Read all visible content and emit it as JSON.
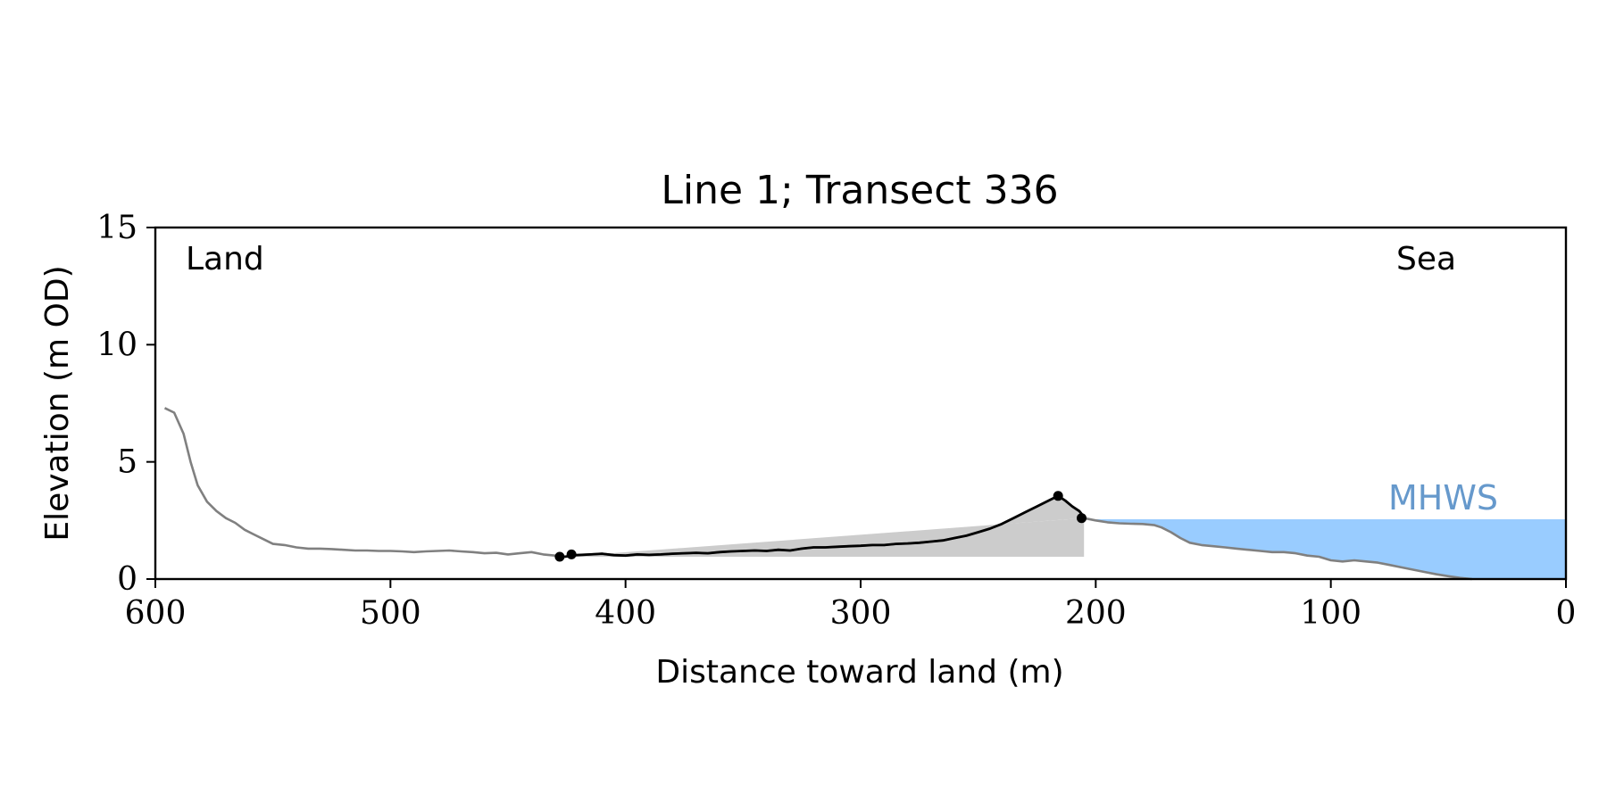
{
  "chart_data": {
    "type": "line",
    "title": "Line 1; Transect 336",
    "xlabel": "Distance toward land (m)",
    "ylabel": "Elevation (m OD)",
    "xlim": [
      600,
      0
    ],
    "ylim": [
      0,
      15
    ],
    "x_ticks": [
      600,
      500,
      400,
      300,
      200,
      100,
      0
    ],
    "y_ticks": [
      0,
      5,
      10,
      15
    ],
    "grid": false,
    "annotations": {
      "land": "Land",
      "sea": "Sea",
      "mhws": "MHWS"
    },
    "mhws_level": 2.55,
    "colors": {
      "profile": "#808080",
      "dune": "#000000",
      "water": "#99ccff",
      "mhws_text": "#6699cc",
      "fill": "#cccccc"
    },
    "profile": {
      "x": [
        596,
        592,
        588,
        585,
        582,
        578,
        574,
        570,
        566,
        562,
        558,
        554,
        550,
        545,
        540,
        535,
        530,
        525,
        520,
        515,
        510,
        505,
        500,
        495,
        490,
        485,
        480,
        475,
        470,
        465,
        460,
        455,
        450,
        445,
        440,
        435,
        430,
        426
      ],
      "y": [
        7.3,
        7.1,
        6.2,
        5.0,
        4.0,
        3.3,
        2.9,
        2.6,
        2.4,
        2.1,
        1.9,
        1.7,
        1.5,
        1.45,
        1.35,
        1.3,
        1.3,
        1.28,
        1.25,
        1.22,
        1.22,
        1.2,
        1.2,
        1.18,
        1.15,
        1.18,
        1.2,
        1.22,
        1.18,
        1.15,
        1.1,
        1.12,
        1.05,
        1.1,
        1.15,
        1.05,
        1.0,
        0.95
      ]
    },
    "dune": {
      "x": [
        426,
        421,
        415,
        410,
        405,
        400,
        395,
        390,
        385,
        380,
        375,
        370,
        365,
        360,
        355,
        350,
        345,
        340,
        335,
        330,
        325,
        320,
        315,
        310,
        305,
        300,
        295,
        290,
        285,
        280,
        275,
        270,
        265,
        260,
        255,
        250,
        245,
        240,
        235,
        230,
        225,
        220,
        216,
        213,
        210,
        207,
        205
      ],
      "y": [
        0.95,
        1.02,
        1.05,
        1.08,
        1.02,
        1.0,
        1.05,
        1.03,
        1.05,
        1.08,
        1.1,
        1.12,
        1.1,
        1.15,
        1.18,
        1.2,
        1.22,
        1.2,
        1.25,
        1.22,
        1.3,
        1.35,
        1.35,
        1.38,
        1.4,
        1.42,
        1.45,
        1.45,
        1.5,
        1.52,
        1.55,
        1.6,
        1.65,
        1.75,
        1.85,
        2.0,
        2.15,
        2.35,
        2.6,
        2.85,
        3.1,
        3.35,
        3.55,
        3.35,
        3.1,
        2.9,
        2.65
      ]
    },
    "seaward": {
      "x": [
        205,
        200,
        195,
        190,
        185,
        180,
        175,
        172,
        168,
        164,
        160,
        155,
        150,
        145,
        140,
        135,
        130,
        125,
        120,
        115,
        110,
        105,
        100,
        95,
        90,
        85,
        80,
        75,
        70,
        65,
        60,
        55,
        50,
        45,
        40
      ],
      "y": [
        2.6,
        2.5,
        2.42,
        2.38,
        2.36,
        2.35,
        2.3,
        2.2,
        2.0,
        1.75,
        1.55,
        1.45,
        1.4,
        1.35,
        1.3,
        1.25,
        1.2,
        1.15,
        1.15,
        1.1,
        1.0,
        0.95,
        0.8,
        0.75,
        0.8,
        0.75,
        0.7,
        0.6,
        0.5,
        0.4,
        0.3,
        0.2,
        0.12,
        0.05,
        0.0
      ]
    },
    "key_points": {
      "x": [
        428,
        423,
        216,
        206
      ],
      "y": [
        0.95,
        1.05,
        3.55,
        2.6
      ]
    },
    "shaded_wedge": {
      "x": [
        426,
        205,
        205
      ],
      "y": [
        0.95,
        2.6,
        0.95
      ]
    }
  }
}
